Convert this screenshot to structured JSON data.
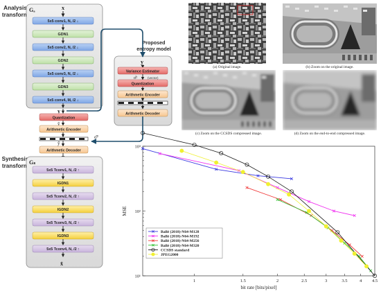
{
  "diagram": {
    "analysis_label": [
      "Analysis",
      "transform"
    ],
    "synthesis_label": [
      "Synthesis",
      "transform"
    ],
    "ga_label": "Gₐ",
    "gs_label": "Gₛ",
    "x_label": "x",
    "y_label": "y",
    "yhat_label": "ŷ",
    "ytilde_label": "ỹ",
    "xhat_label": "x̂",
    "sigma_label": "σ̂²",
    "analysis_blocks": [
      {
        "text": "5x5 conv1, N, /2 ↓",
        "kind": "conv"
      },
      {
        "text": "GDN1",
        "kind": "gdn"
      },
      {
        "text": "5x5 conv2, N, /2 ↓",
        "kind": "conv"
      },
      {
        "text": "GDN2",
        "kind": "gdn"
      },
      {
        "text": "5x5 conv3, N, /2 ↓",
        "kind": "conv"
      },
      {
        "text": "GDN3",
        "kind": "gdn"
      },
      {
        "text": "5x5 conv4, M, /2 ↓",
        "kind": "conv"
      }
    ],
    "synthesis_blocks": [
      {
        "text": "5x5 Tconv1, N, /2 ↑",
        "kind": "tconv"
      },
      {
        "text": "IGDN1",
        "kind": "igdn"
      },
      {
        "text": "5x5 Tconv2, N, /2 ↑",
        "kind": "tconv"
      },
      {
        "text": "IGDN2",
        "kind": "igdn"
      },
      {
        "text": "5x5 Tconv3, N, /2 ↑",
        "kind": "tconv"
      },
      {
        "text": "IGDN3",
        "kind": "igdn"
      },
      {
        "text": "5x5 Tconv4, N, /2 ↑",
        "kind": "tconv"
      }
    ],
    "quantization": "Quantization",
    "arith_encoder": "Arithmetic Encoder",
    "arith_decoder": "Arithmetic Decoder",
    "entropy_title": [
      "Proposed",
      "entropy model"
    ],
    "variance_estimator": "Variance Estimator",
    "vector_note": "(vector)"
  },
  "images": {
    "captions": [
      "(a) Original image.",
      "(b) Zoom on the original image.",
      "(c) Zoom on the CCSDS compressed image.",
      "(d) Zoom on the end-to-end compressed image."
    ]
  },
  "chart_data": {
    "type": "line",
    "xlabel": "bit rate [bits/pixel]",
    "ylabel": "MSE",
    "x_scale": "log",
    "y_scale": "log",
    "xlim": [
      0.65,
      4.5
    ],
    "ylim": [
      10,
      1000
    ],
    "x_ticks": [
      1,
      1.5,
      2,
      2.5,
      3,
      3.5,
      4,
      4.5
    ],
    "x_tick_labels": [
      "1",
      "1.5",
      "2",
      "2.5",
      "3",
      "3.5",
      "4",
      "4.5"
    ],
    "y_ticks": [
      10,
      100,
      1000
    ],
    "y_tick_labels": [
      "10¹",
      "10²",
      "10³"
    ],
    "legend_position": "lower-left",
    "series": [
      {
        "name": "Ballé (2018)-N64-M128",
        "color": "#3838e0",
        "marker": "x",
        "x": [
          0.65,
          1.2,
          1.7,
          2.25
        ],
        "y": [
          920,
          440,
          350,
          315
        ]
      },
      {
        "name": "Ballé (2018)-N64-M192",
        "color": "#f030f0",
        "marker": "x",
        "x": [
          0.75,
          1.45,
          2.0,
          2.6,
          3.2,
          3.8
        ],
        "y": [
          770,
          420,
          230,
          140,
          100,
          85
        ]
      },
      {
        "name": "Ballé (2018)-N64-M256",
        "color": "#f03838",
        "marker": "x",
        "x": [
          1.55,
          2.05,
          2.65,
          3.15,
          3.65,
          4.05
        ],
        "y": [
          230,
          150,
          85,
          50,
          30,
          20
        ]
      },
      {
        "name": "Ballé (2018)-N64-M320",
        "color": "#30c030",
        "marker": "x",
        "x": [
          2.0,
          2.55,
          3.05,
          3.5,
          3.95,
          4.35
        ],
        "y": [
          150,
          95,
          55,
          32,
          20,
          12
        ]
      },
      {
        "name": "CCSDS standard",
        "color": "#1a1a1a",
        "marker": "o",
        "x": [
          0.65,
          1.0,
          1.25,
          1.55,
          1.85,
          2.25,
          3.3,
          4.5
        ],
        "y": [
          1600,
          1050,
          780,
          520,
          340,
          200,
          47,
          10
        ]
      },
      {
        "name": "JPEG2000",
        "color": "#f0f030",
        "marker": "o",
        "x": [
          0.9,
          1.2,
          1.5,
          1.85,
          2.2,
          2.6,
          3.0,
          3.4,
          3.8,
          4.2
        ],
        "y": [
          850,
          560,
          400,
          260,
          180,
          100,
          58,
          35,
          22,
          14
        ]
      }
    ]
  }
}
